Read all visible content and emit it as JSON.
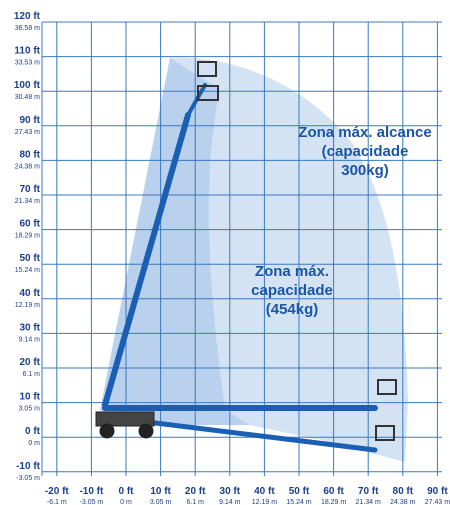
{
  "y_axis": {
    "ticks": [
      {
        "ft": "120 ft",
        "m": "36.58 m"
      },
      {
        "ft": "110 ft",
        "m": "33.53 m"
      },
      {
        "ft": "100 ft",
        "m": "30.48 m"
      },
      {
        "ft": "90 ft",
        "m": "27.43 m"
      },
      {
        "ft": "80 ft",
        "m": "24.38 m"
      },
      {
        "ft": "70 ft",
        "m": "21.34 m"
      },
      {
        "ft": "60 ft",
        "m": "18.29 m"
      },
      {
        "ft": "50 ft",
        "m": "15.24 m"
      },
      {
        "ft": "40 ft",
        "m": "12.19 m"
      },
      {
        "ft": "30 ft",
        "m": "9.14 m"
      },
      {
        "ft": "20 ft",
        "m": "6.1 m"
      },
      {
        "ft": "10 ft",
        "m": "3.05 m"
      },
      {
        "ft": "0 ft",
        "m": "0 m"
      },
      {
        "ft": "-10 ft",
        "m": "-3.05 m"
      }
    ]
  },
  "x_axis": {
    "ticks": [
      {
        "ft": "-20 ft",
        "m": "-6.1 m"
      },
      {
        "ft": "-10 ft",
        "m": "-3.05 m"
      },
      {
        "ft": "0 ft",
        "m": "0 m"
      },
      {
        "ft": "10 ft",
        "m": "3.05 m"
      },
      {
        "ft": "20 ft",
        "m": "6.1 m"
      },
      {
        "ft": "30 ft",
        "m": "9.14 m"
      },
      {
        "ft": "40 ft",
        "m": "12.19 m"
      },
      {
        "ft": "50 ft",
        "m": "15.24 m"
      },
      {
        "ft": "60 ft",
        "m": "18.29 m"
      },
      {
        "ft": "70 ft",
        "m": "21.34 m"
      },
      {
        "ft": "80 ft",
        "m": "24.38 m"
      },
      {
        "ft": "90 ft",
        "m": "27.43 m"
      }
    ]
  },
  "zones": [
    {
      "lines": [
        "Zona máx. alcance",
        "(capacidade",
        "300kg)"
      ]
    },
    {
      "lines": [
        "Zona máx.",
        "capacidade",
        "(454kg)"
      ]
    }
  ]
}
